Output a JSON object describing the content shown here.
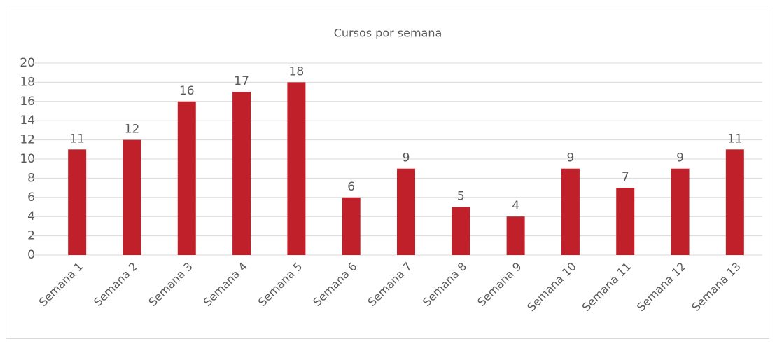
{
  "chart_data": {
    "type": "bar",
    "title": "Cursos por semana",
    "categories": [
      "Semana 1",
      "Semana 2",
      "Semana 3",
      "Semana 4",
      "Semana 5",
      "Semana 6",
      "Semana 7",
      "Semana 8",
      "Semana 9",
      "Semana 10",
      "Semana 11",
      "Semana 12",
      "Semana 13"
    ],
    "values": [
      11,
      12,
      16,
      17,
      18,
      6,
      9,
      5,
      4,
      9,
      7,
      9,
      11
    ],
    "color": "#c0202a",
    "ylim": [
      0,
      20
    ],
    "yticks": [
      0,
      2,
      4,
      6,
      8,
      10,
      12,
      14,
      16,
      18,
      20
    ],
    "grid": true,
    "data_labels": true
  }
}
